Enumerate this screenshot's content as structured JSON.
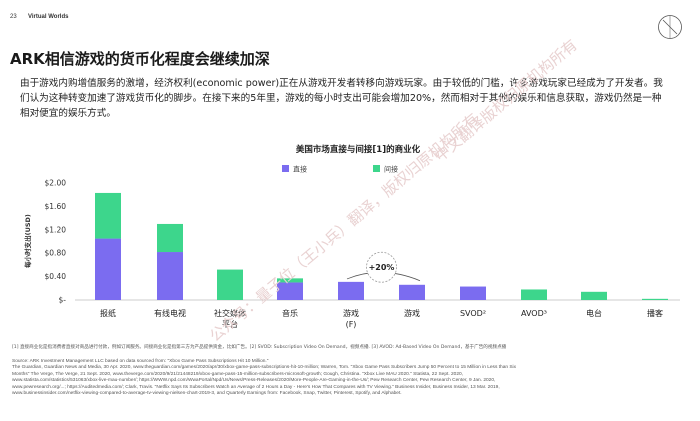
{
  "header": {
    "page_number": "23",
    "section": "Virtual Worlds"
  },
  "title": "ARK相信游戏的货币化程度会继续加深",
  "intro": "由于游戏内购增值服务的激增，经济权利(economic power)正在从游戏开发者转移向游戏玩家。由于较低的门槛，许多游戏玩家已经成为了开发者。我们认为这种转变加速了游戏货币化的脚步。在接下来的5年里，游戏的每小时支出可能会增加20%，然而相对于其他的娱乐和信息获取，游戏仍然是一种相对便宜的娱乐方式。",
  "chart_data": {
    "type": "bar",
    "title": "美国市场直接与间接[1]的商业化",
    "ylabel": "每小时支出(USD)",
    "ylim": [
      0,
      2.0
    ],
    "yticks": [
      "$-",
      "$0.40",
      "$0.80",
      "$1.20",
      "$1.60",
      "$2.00"
    ],
    "categories": [
      "报纸",
      "有线电视",
      "社交媒体平台",
      "音乐",
      "游戏(F)",
      "游戏",
      "SVOD[2]",
      "AVOD[3]",
      "电台",
      "播客"
    ],
    "series": [
      {
        "name": "直接",
        "color": "#7b6cf0",
        "values": [
          1.05,
          0.82,
          0,
          0.3,
          0.31,
          0.26,
          0.23,
          0,
          0,
          0
        ]
      },
      {
        "name": "间接",
        "color": "#3dd68c",
        "values": [
          0.78,
          0.48,
          0.52,
          0.07,
          0,
          0,
          0,
          0.18,
          0.14,
          0.02
        ]
      }
    ],
    "annotation": "+20%"
  },
  "footnote": "[1] 直接商业化是指消费者直接对商品进行付款，例如订阅服务。间接商业化是指第三方为产品提供资金，比如广告。[2] SVOD: Subscription Video On Demand，视频点播. [3] AVOD: Ad-Based Video On Demand，基于广告的视频点播",
  "sources": [
    "Source: ARK Investment Management LLC based on data sourced from: \"Xbox Game Pass Subscriptions Hit 10 Million.\"",
    "The Guardian, Guardian News and Media, 30 Apr. 2020, www.theguardian.com/games/2020/apr/30/xbox-game-pass-subscriptions-hit-10-million; Warren, Tom. \"Xbox Game Pass Subscribers Jump 50 Percent to 15 Million in Less than Six",
    "Months\" The Verge, The Verge, 21 Sept. 2020, www.theverge.com/2020/9/21/21448219/xbox-game-pass-15-million-subscribers-microsoft-growth; Gough, Christina. \"Xbox Live MAU 2020.\" Statista, 22 Sept. 2020,",
    "www.statista.com/statistics/531063/xbox-live-mau-number/; https://WWW.npd.com/WwaPortal/Npd/Us/News/Press-Releases/2020/More-People-Are-Gaming-in-the-Us/; Pew Research Center, Pew Research Center, 9 Jan. 2020,",
    "www.pewresearch.org/...; https://Auditedmedia.com/; Clark, Travis. \"Netflix Says Its Subscribers Watch an Average of 2 Hours a Day - Here's How That Compares with TV Viewing.\" Business Insider, Business Insider, 13 Mar. 2019,",
    "www.businessinsider.com/netflix-viewing-compared-to-average-tv-viewing-nielsen-chart-2019-3, and Quarterly Earnings from: Facebook, Snap, Twitter, Pinterest, Spotify, and Alphabet."
  ],
  "watermarks": [
    "公众号：量子位（王小兵）翻译，版权归原机构所有",
    "中文翻译版权归原机构所有"
  ]
}
